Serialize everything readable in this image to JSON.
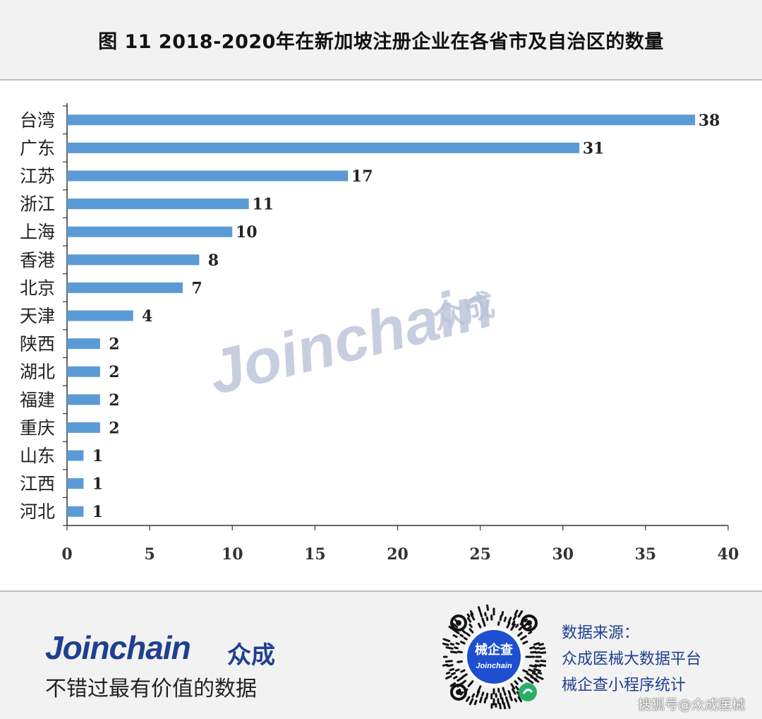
{
  "header": {
    "title": "图 11 2018-2020年在新加坡注册企业在各省市及自治区的数量"
  },
  "chart_data": {
    "type": "bar",
    "orientation": "horizontal",
    "title": "图 11 2018-2020年在新加坡注册企业在各省市及自治区的数量",
    "categories": [
      "台湾",
      "广东",
      "江苏",
      "浙江",
      "上海",
      "香港",
      "北京",
      "天津",
      "陕西",
      "湖北",
      "福建",
      "重庆",
      "山东",
      "江西",
      "河北"
    ],
    "values": [
      38,
      31,
      17,
      11,
      10,
      8,
      7,
      4,
      2,
      2,
      2,
      2,
      1,
      1,
      1
    ],
    "xlim": [
      0,
      40
    ],
    "x_ticks": [
      0,
      5,
      10,
      15,
      20,
      25,
      30,
      35,
      40
    ],
    "xlabel": "",
    "ylabel": "",
    "data_labels": true,
    "grid": false,
    "bar_color": "#5b9bd5"
  },
  "watermark": {
    "text": "Joinchain",
    "cn": "众成",
    "color": "#b8c3d8"
  },
  "footer": {
    "brand": "Joinchain",
    "brand_cn": "众成",
    "slogan": "不错过最有价值的数据",
    "qr_label_top": "械企查",
    "qr_label_bottom": "Joinchain",
    "source_lines": [
      "数据来源：",
      "众成医械大数据平台",
      "械企查小程序统计"
    ],
    "credit": "搜狐号@众成医械",
    "brand_color": "#1f3f8f"
  }
}
